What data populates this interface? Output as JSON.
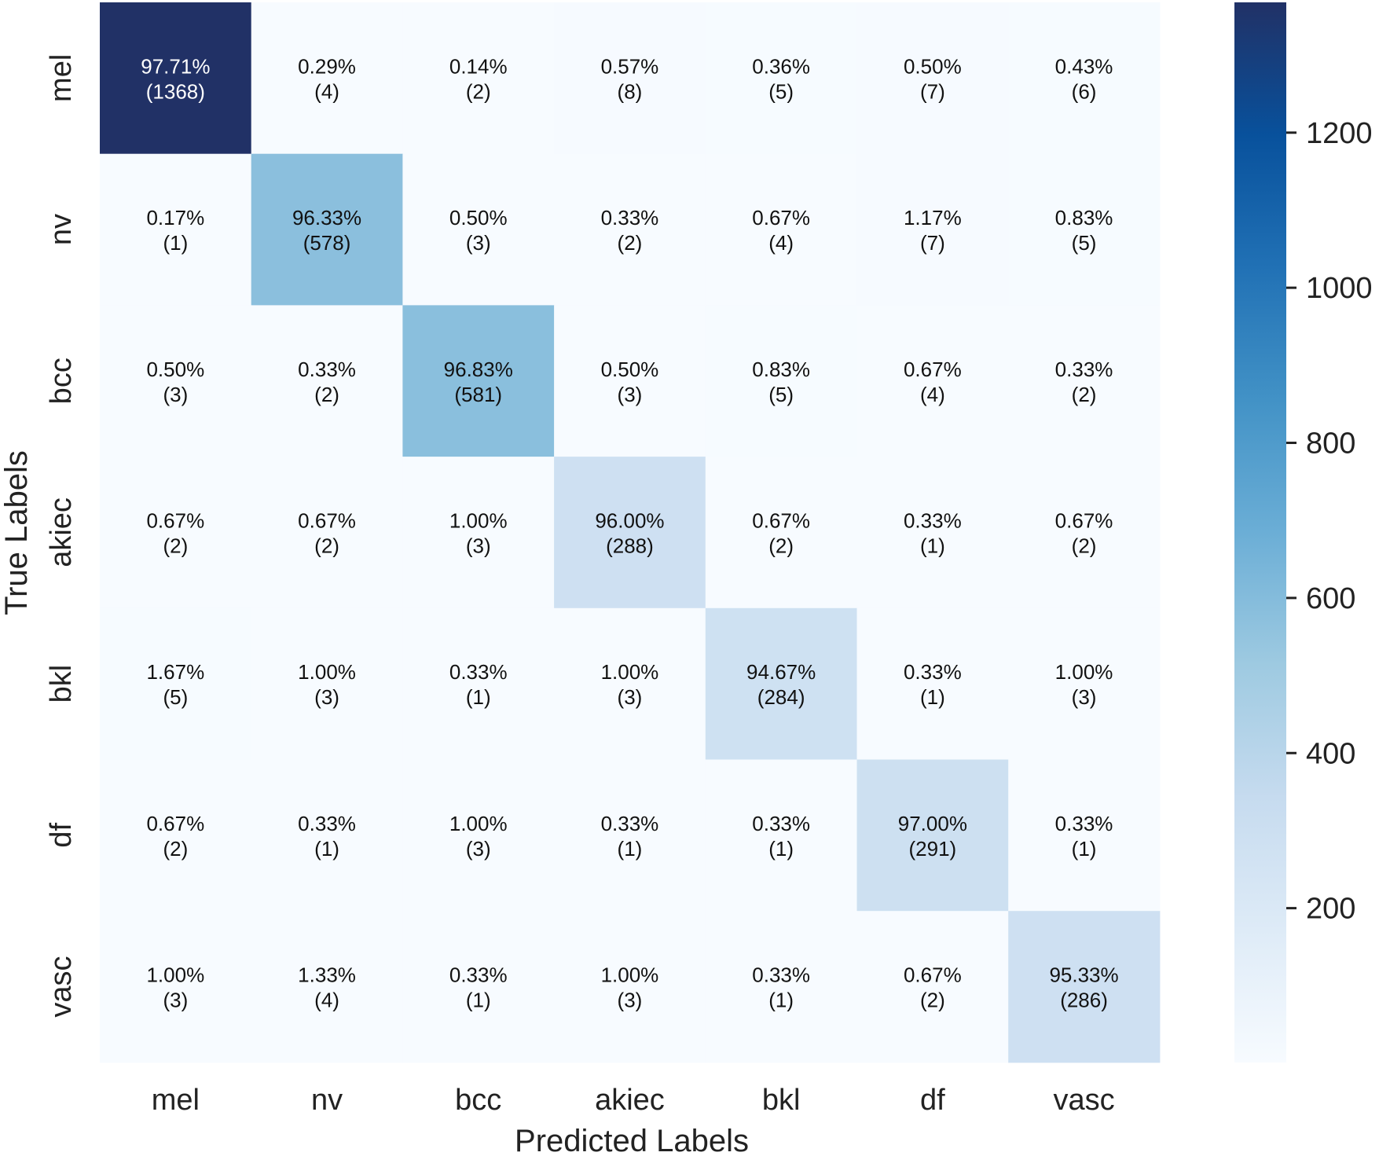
{
  "chart_data": {
    "type": "heatmap",
    "title": "",
    "xlabel": "Predicted Labels",
    "ylabel": "True Labels",
    "x_categories": [
      "mel",
      "nv",
      "bcc",
      "akiec",
      "bkl",
      "df",
      "vasc"
    ],
    "y_categories": [
      "mel",
      "nv",
      "bcc",
      "akiec",
      "bkl",
      "df",
      "vasc"
    ],
    "counts": [
      [
        1368,
        4,
        2,
        8,
        5,
        7,
        6
      ],
      [
        1,
        578,
        3,
        2,
        4,
        7,
        5
      ],
      [
        3,
        2,
        581,
        3,
        5,
        4,
        2
      ],
      [
        2,
        2,
        3,
        288,
        2,
        1,
        2
      ],
      [
        5,
        3,
        1,
        3,
        284,
        1,
        3
      ],
      [
        2,
        1,
        3,
        1,
        1,
        291,
        1
      ],
      [
        3,
        4,
        1,
        3,
        1,
        2,
        286
      ]
    ],
    "percent_labels": [
      [
        "97.71%",
        "0.29%",
        "0.14%",
        "0.57%",
        "0.36%",
        "0.50%",
        "0.43%"
      ],
      [
        "0.17%",
        "96.33%",
        "0.50%",
        "0.33%",
        "0.67%",
        "1.17%",
        "0.83%"
      ],
      [
        "0.50%",
        "0.33%",
        "96.83%",
        "0.50%",
        "0.83%",
        "0.67%",
        "0.33%"
      ],
      [
        "0.67%",
        "0.67%",
        "1.00%",
        "96.00%",
        "0.67%",
        "0.33%",
        "0.67%"
      ],
      [
        "1.67%",
        "1.00%",
        "0.33%",
        "1.00%",
        "94.67%",
        "0.33%",
        "1.00%"
      ],
      [
        "0.67%",
        "0.33%",
        "1.00%",
        "0.33%",
        "0.33%",
        "97.00%",
        "0.33%"
      ],
      [
        "1.00%",
        "1.33%",
        "0.33%",
        "1.00%",
        "0.33%",
        "0.67%",
        "95.33%"
      ]
    ],
    "colormap": "Blues",
    "colorbar": {
      "vmin": 1,
      "vmax": 1368,
      "ticks": [
        200,
        400,
        600,
        800,
        1000,
        1200
      ]
    },
    "grid": false
  }
}
